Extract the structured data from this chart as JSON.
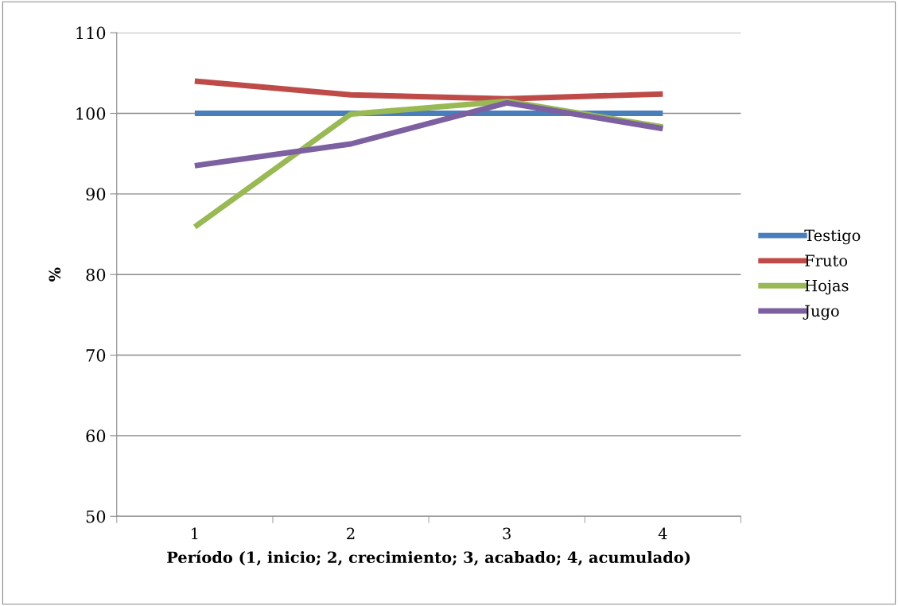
{
  "chart_data": {
    "type": "line",
    "xlabel": "Período (1, inicio; 2, crecimiento; 3, acabado; 4, acumulado)",
    "ylabel": "%",
    "categories": [
      "1",
      "2",
      "3",
      "4"
    ],
    "series": [
      {
        "name": "Testigo",
        "color": "#4a7ebb",
        "values": [
          100,
          100,
          100,
          100
        ]
      },
      {
        "name": "Fruto",
        "color": "#be4b48",
        "values": [
          104.0,
          102.3,
          101.8,
          102.4
        ]
      },
      {
        "name": "Hojas",
        "color": "#98b954",
        "values": [
          85.9,
          99.9,
          101.5,
          98.3
        ]
      },
      {
        "name": "Jugo",
        "color": "#7d60a0",
        "values": [
          93.5,
          96.2,
          101.3,
          98.1
        ]
      }
    ],
    "ylim": [
      50,
      110
    ],
    "yticks": [
      50,
      60,
      70,
      80,
      90,
      100,
      110
    ],
    "grid": "y",
    "legend": "right",
    "marker": "none",
    "line_style": "solid"
  }
}
